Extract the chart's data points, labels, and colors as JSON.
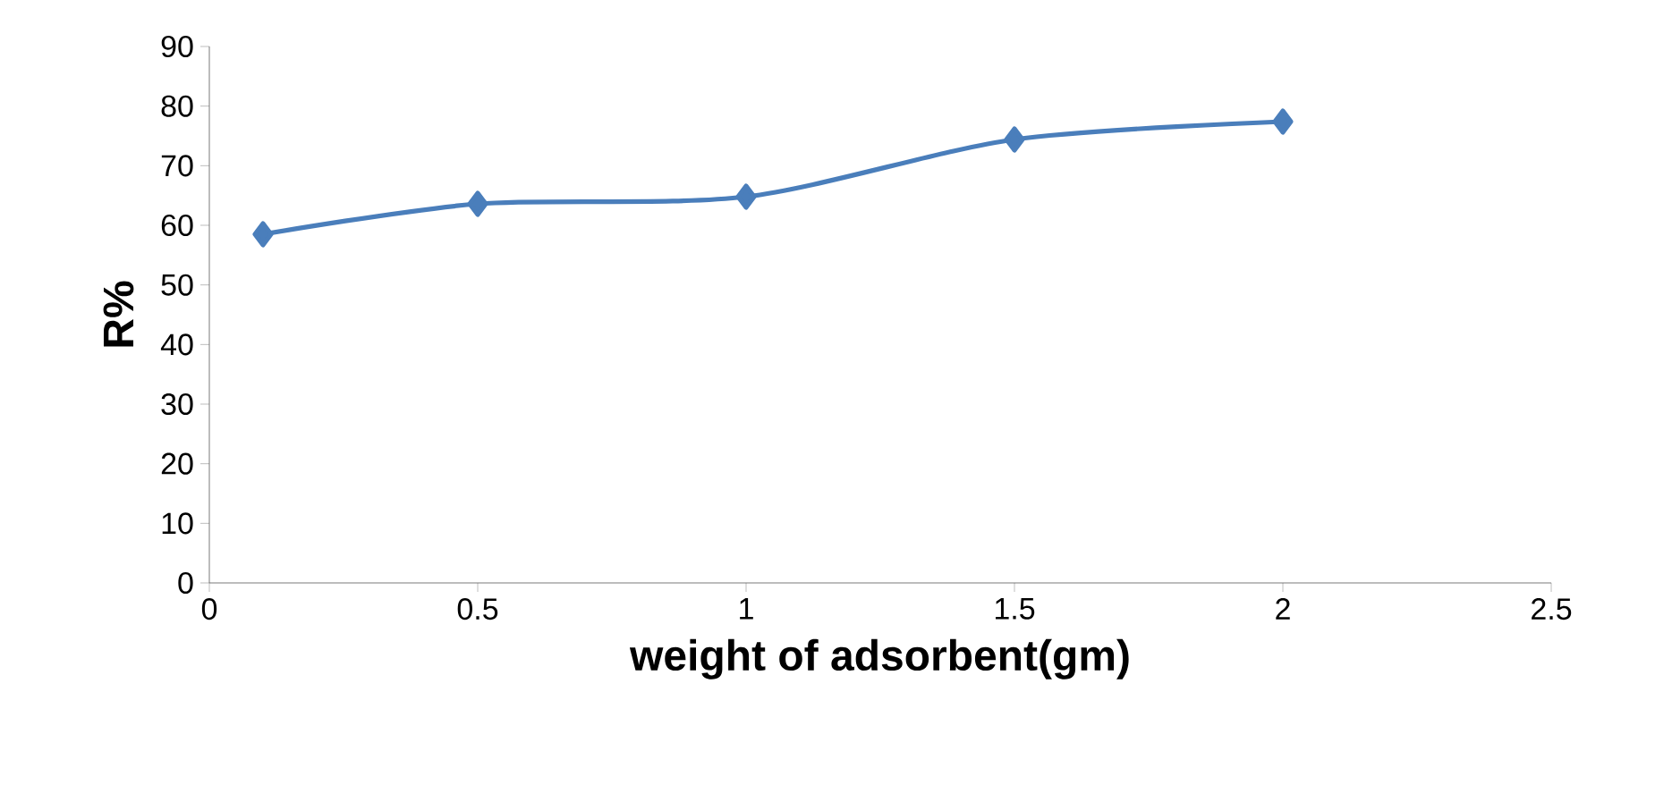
{
  "chart_data": {
    "type": "line",
    "xlabel": "weight of adsorbent(gm)",
    "ylabel": "R%",
    "x": [
      0.1,
      0.5,
      1,
      1.5,
      2
    ],
    "series": [
      {
        "color": "#4a7ebb",
        "values": [
          58.5,
          63.6,
          64.8,
          74.4,
          77.4
        ]
      }
    ],
    "xlim": [
      0,
      2.5
    ],
    "xticks": [
      0,
      0.5,
      1,
      1.5,
      2,
      2.5
    ],
    "ylim": [
      0,
      90
    ],
    "yticks": [
      0,
      10,
      20,
      30,
      40,
      50,
      60,
      70,
      80,
      90
    ],
    "grid": false,
    "marker": "diamond",
    "line_style": "solid"
  }
}
